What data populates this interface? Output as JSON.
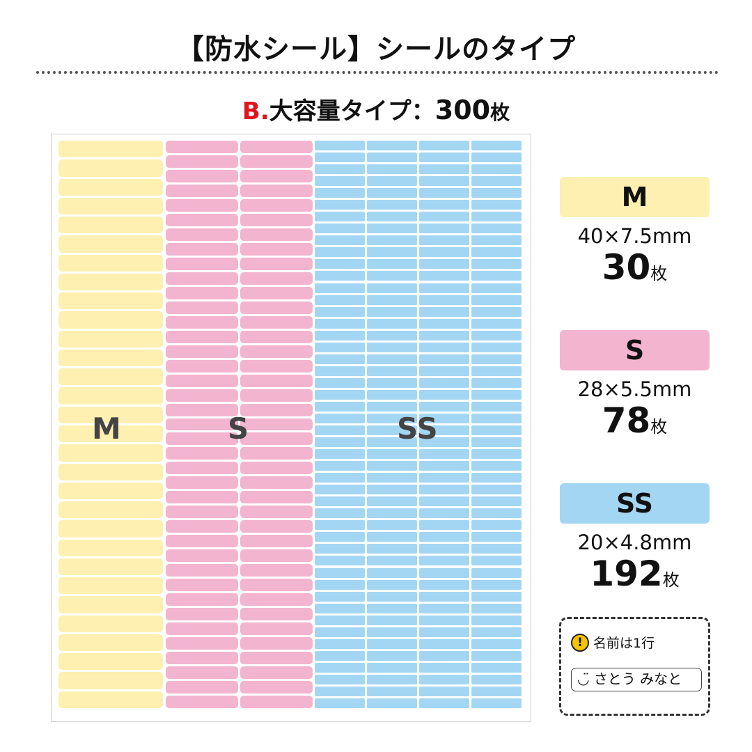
{
  "title": "【防水シール】シールのタイプ",
  "subtitle": {
    "prefix": "B.",
    "type": "大容量タイプ：",
    "count": "300",
    "unit": "枚"
  },
  "colors": {
    "M": "#fdf0b0",
    "S": "#f3b4cf",
    "SS": "#a3d6f3",
    "accent": "#e0141e"
  },
  "sheet": {
    "labels": {
      "M": "M",
      "S": "S",
      "SS": "SS"
    }
  },
  "specs": [
    {
      "name": "M",
      "size": "40×7.5mm",
      "count": "30",
      "unit": "枚",
      "columns": 1,
      "rows": 30
    },
    {
      "name": "S",
      "size": "28×5.5mm",
      "count": "78",
      "unit": "枚",
      "columns": 2,
      "rows": 39
    },
    {
      "name": "SS",
      "size": "20×4.8mm",
      "count": "192",
      "unit": "枚",
      "columns": 4,
      "rows": 48
    }
  ],
  "note": {
    "icon": "exclamation-icon",
    "warning": "名前は1行",
    "example_icon": "smiley-icon",
    "example": "さとう みなと"
  }
}
